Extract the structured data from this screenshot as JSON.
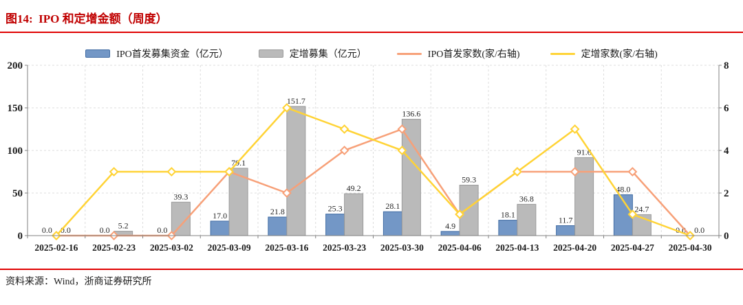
{
  "header": {
    "title": "图14:  IPO 和定增金额（周度）"
  },
  "footer": {
    "source": "资料来源：Wind，浙商证券研究所"
  },
  "colors": {
    "title_red": "#c00000",
    "rule_red": "#e00000",
    "ipo_bar_fill": "#7397c6",
    "ipo_bar_border": "#3f6ba3",
    "dz_bar_fill": "#bababa",
    "dz_bar_border": "#9a9a9a",
    "ipo_line": "#f7a078",
    "dz_line": "#ffd335",
    "grid": "#dcdcdc",
    "axis": "#808080"
  },
  "chart_data": {
    "type": "bar",
    "subtype": "combo-bar-line-dual-axis",
    "title": "IPO 和定增金额（周度）",
    "categories": [
      "2025-02-16",
      "2025-02-23",
      "2025-03-02",
      "2025-03-09",
      "2025-03-16",
      "2025-03-23",
      "2025-03-30",
      "2025-04-06",
      "2025-04-13",
      "2025-04-20",
      "2025-04-27",
      "2025-04-30"
    ],
    "series": [
      {
        "name": "IPO首发募集资金（亿元）",
        "kind": "bar",
        "axis": "left",
        "color": "#7397c6",
        "border": "#3f6ba3",
        "values": [
          0.0,
          0.0,
          0.0,
          17.0,
          21.8,
          25.3,
          28.1,
          4.9,
          18.1,
          11.7,
          48.0,
          0.0
        ]
      },
      {
        "name": "定增募集（亿元）",
        "kind": "bar",
        "axis": "left",
        "color": "#bababa",
        "border": "#9a9a9a",
        "values": [
          0.0,
          5.2,
          39.3,
          79.1,
          151.7,
          49.2,
          136.6,
          59.3,
          36.8,
          91.6,
          24.7,
          0.0
        ]
      },
      {
        "name": "IPO首发家数(家/右轴)",
        "kind": "line",
        "axis": "right",
        "color": "#f7a078",
        "values": [
          0,
          0,
          0,
          3,
          2,
          4,
          5,
          1,
          3,
          3,
          3,
          0
        ]
      },
      {
        "name": "定增家数(家/右轴)",
        "kind": "line",
        "axis": "right",
        "color": "#ffd335",
        "values": [
          0,
          3,
          3,
          3,
          6,
          5,
          4,
          1,
          3,
          5,
          1,
          0
        ]
      }
    ],
    "left_axis": {
      "min": 0,
      "max": 200,
      "ticks": [
        0,
        50,
        100,
        150,
        200
      ]
    },
    "right_axis": {
      "min": 0,
      "max": 8,
      "ticks": [
        0,
        2,
        4,
        6,
        8
      ]
    },
    "grid": true,
    "legend_position": "top",
    "bar_value_labels": true
  }
}
